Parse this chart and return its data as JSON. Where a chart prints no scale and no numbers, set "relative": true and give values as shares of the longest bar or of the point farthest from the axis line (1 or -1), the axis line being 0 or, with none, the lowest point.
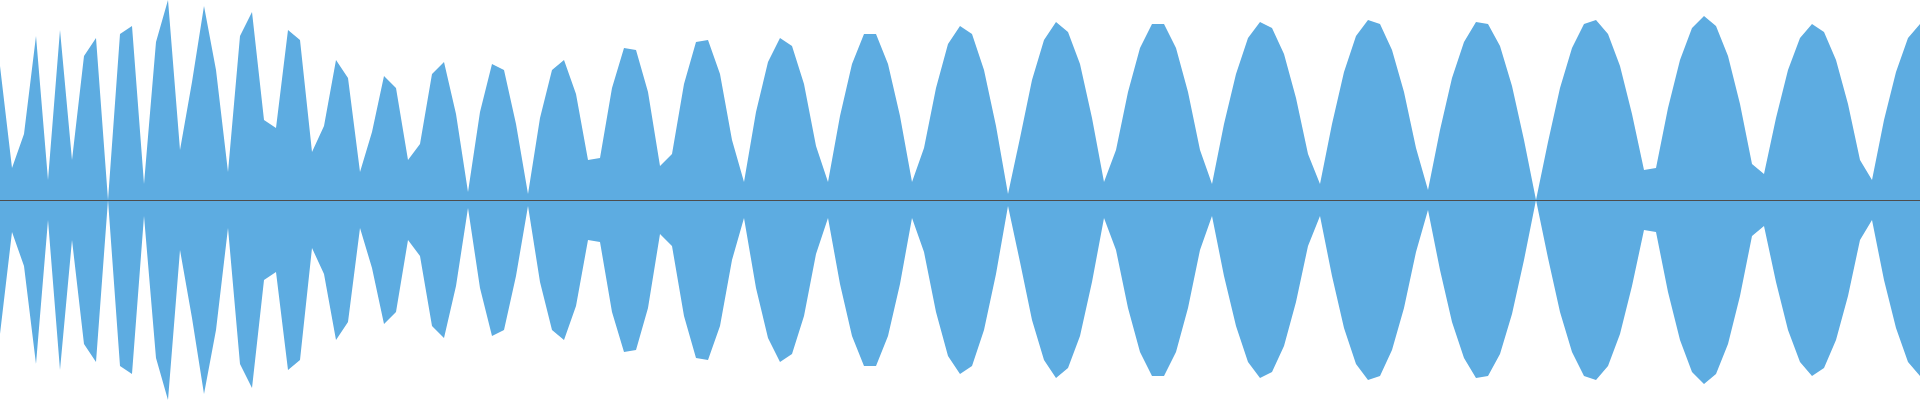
{
  "chart_data": {
    "type": "area",
    "relative": true,
    "categories": [
      null,
      null,
      null,
      null,
      null,
      null,
      null,
      null,
      null,
      null,
      null,
      null,
      null,
      null,
      null,
      null,
      null,
      null,
      null,
      null,
      null,
      null,
      null,
      null,
      null,
      null,
      null,
      null,
      null,
      null,
      null,
      null,
      null,
      null,
      null,
      null,
      null,
      null,
      null,
      null,
      null,
      null,
      null,
      null,
      null,
      null,
      null,
      null,
      null,
      null,
      null,
      null,
      null,
      null,
      null,
      null,
      null,
      null,
      null,
      null,
      null,
      null,
      null,
      null,
      null,
      null,
      null,
      null,
      null,
      null,
      null,
      null,
      null,
      null,
      null,
      null,
      null,
      null,
      null,
      null,
      null,
      null,
      null,
      null,
      null,
      null,
      null,
      null,
      null,
      null,
      null,
      null,
      null,
      null,
      null,
      null,
      null,
      null,
      null,
      null,
      null,
      null,
      null,
      null,
      null,
      null,
      null,
      null,
      null,
      null,
      null,
      null,
      null,
      null,
      null,
      null,
      null,
      null,
      null,
      null,
      null,
      null,
      null,
      null,
      null,
      null,
      null,
      null,
      null,
      null,
      null,
      null,
      null,
      null,
      null,
      null,
      null,
      null,
      null,
      null,
      null,
      null,
      null,
      null,
      null,
      null,
      null,
      null,
      null,
      null,
      null,
      null,
      null,
      null,
      null,
      null,
      null,
      null,
      null,
      null,
      null
    ],
    "series": [
      {
        "color": "#5dace1",
        "values": [
          0.67,
          0.16,
          0.33,
          0.82,
          0.1,
          0.85,
          0.2,
          0.72,
          0.81,
          0,
          0.83,
          0.87,
          0.08,
          0.79,
          1,
          0.25,
          0.59,
          0.97,
          0.65,
          0.14,
          0.82,
          0.94,
          0.4,
          0.36,
          0.85,
          0.8,
          0.24,
          0.37,
          0.7,
          0.61,
          0.14,
          0.34,
          0.62,
          0.56,
          0.2,
          0.28,
          0.63,
          0.69,
          0.43,
          0.04,
          0.44,
          0.68,
          0.65,
          0.38,
          0.03,
          0.41,
          0.65,
          0.7,
          0.53,
          0.2,
          0.21,
          0.56,
          0.76,
          0.75,
          0.54,
          0.17,
          0.23,
          0.58,
          0.79,
          0.8,
          0.63,
          0.3,
          0.09,
          0.44,
          0.69,
          0.81,
          0.77,
          0.58,
          0.27,
          0.09,
          0.42,
          0.68,
          0.83,
          0.83,
          0.68,
          0.42,
          0.09,
          0.26,
          0.56,
          0.78,
          0.87,
          0.83,
          0.65,
          0.37,
          0.03,
          0.31,
          0.6,
          0.8,
          0.89,
          0.84,
          0.68,
          0.41,
          0.09,
          0.25,
          0.54,
          0.76,
          0.88,
          0.88,
          0.76,
          0.54,
          0.25,
          0.08,
          0.38,
          0.63,
          0.81,
          0.89,
          0.86,
          0.73,
          0.51,
          0.23,
          0.08,
          0.38,
          0.64,
          0.82,
          0.9,
          0.88,
          0.75,
          0.54,
          0.26,
          0.05,
          0.35,
          0.61,
          0.79,
          0.89,
          0.88,
          0.77,
          0.57,
          0.3,
          0,
          0.29,
          0.56,
          0.76,
          0.88,
          0.9,
          0.83,
          0.67,
          0.43,
          0.15,
          0.16,
          0.46,
          0.7,
          0.86,
          0.92,
          0.87,
          0.72,
          0.48,
          0.18,
          0.13,
          0.41,
          0.65,
          0.81,
          0.88,
          0.84,
          0.7,
          0.48,
          0.2,
          0.1,
          0.4,
          0.64,
          0.81,
          0.88
        ]
      },
      {
        "color": "#5dace1",
        "values": [
          -0.67,
          -0.16,
          -0.33,
          -0.82,
          -0.1,
          -0.85,
          -0.2,
          -0.72,
          -0.81,
          0,
          -0.83,
          -0.87,
          -0.08,
          -0.79,
          -1,
          -0.25,
          -0.59,
          -0.97,
          -0.65,
          -0.14,
          -0.82,
          -0.94,
          -0.4,
          -0.36,
          -0.85,
          -0.8,
          -0.24,
          -0.37,
          -0.7,
          -0.61,
          -0.14,
          -0.34,
          -0.62,
          -0.56,
          -0.2,
          -0.28,
          -0.63,
          -0.69,
          -0.43,
          -0.04,
          -0.44,
          -0.68,
          -0.65,
          -0.38,
          -0.03,
          -0.41,
          -0.65,
          -0.7,
          -0.53,
          -0.2,
          -0.21,
          -0.56,
          -0.76,
          -0.75,
          -0.54,
          -0.17,
          -0.23,
          -0.58,
          -0.79,
          -0.8,
          -0.63,
          -0.3,
          -0.09,
          -0.44,
          -0.69,
          -0.81,
          -0.77,
          -0.58,
          -0.27,
          -0.09,
          -0.42,
          -0.68,
          -0.83,
          -0.83,
          -0.68,
          -0.42,
          -0.09,
          -0.26,
          -0.56,
          -0.78,
          -0.87,
          -0.83,
          -0.65,
          -0.37,
          -0.03,
          -0.31,
          -0.6,
          -0.8,
          -0.89,
          -0.84,
          -0.68,
          -0.41,
          -0.09,
          -0.25,
          -0.54,
          -0.76,
          -0.88,
          -0.88,
          -0.76,
          -0.54,
          -0.25,
          -0.08,
          -0.38,
          -0.63,
          -0.81,
          -0.89,
          -0.86,
          -0.73,
          -0.51,
          -0.23,
          -0.08,
          -0.38,
          -0.64,
          -0.82,
          -0.9,
          -0.88,
          -0.75,
          -0.54,
          -0.26,
          -0.05,
          -0.35,
          -0.61,
          -0.79,
          -0.89,
          -0.88,
          -0.77,
          -0.57,
          -0.3,
          0,
          -0.29,
          -0.56,
          -0.76,
          -0.88,
          -0.9,
          -0.83,
          -0.67,
          -0.43,
          -0.15,
          -0.16,
          -0.46,
          -0.7,
          -0.86,
          -0.92,
          -0.87,
          -0.72,
          -0.48,
          -0.18,
          -0.13,
          -0.41,
          -0.65,
          -0.81,
          -0.88,
          -0.84,
          -0.7,
          -0.48,
          -0.2,
          -0.1,
          -0.4,
          -0.64,
          -0.81,
          -0.88
        ]
      }
    ]
  }
}
